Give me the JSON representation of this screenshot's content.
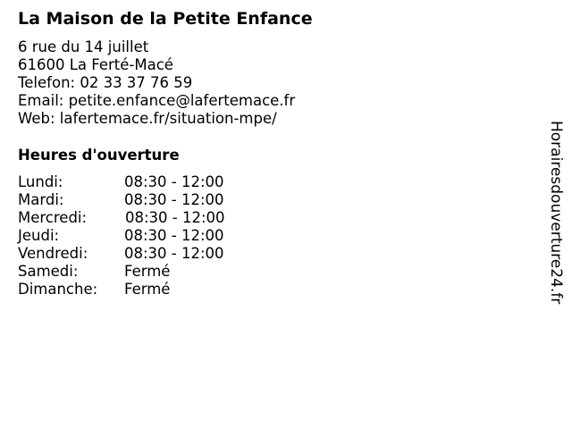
{
  "title": "La Maison de la Petite Enfance",
  "address": {
    "street": "6 rue du 14 juillet",
    "city": "61600 La Ferté-Macé",
    "phone": "Telefon: 02 33 37 76 59",
    "email": "Email: petite.enfance@lafertemace.fr",
    "web": "Web: lafertemace.fr/situation-mpe/"
  },
  "hours_title": "Heures d'ouverture",
  "hours": [
    {
      "day": "Lundi:",
      "time": "08:30 - 12:00"
    },
    {
      "day": "Mardi:",
      "time": "08:30 - 12:00"
    },
    {
      "day": "Mercredi:",
      "time": "08:30 - 12:00"
    },
    {
      "day": "Jeudi:",
      "time": "08:30 - 12:00"
    },
    {
      "day": "Vendredi:",
      "time": "08:30 - 12:00"
    },
    {
      "day": "Samedi:",
      "time": "Fermé"
    },
    {
      "day": "Dimanche:",
      "time": "Fermé"
    }
  ],
  "watermark": "Horairesdouverture24.fr"
}
